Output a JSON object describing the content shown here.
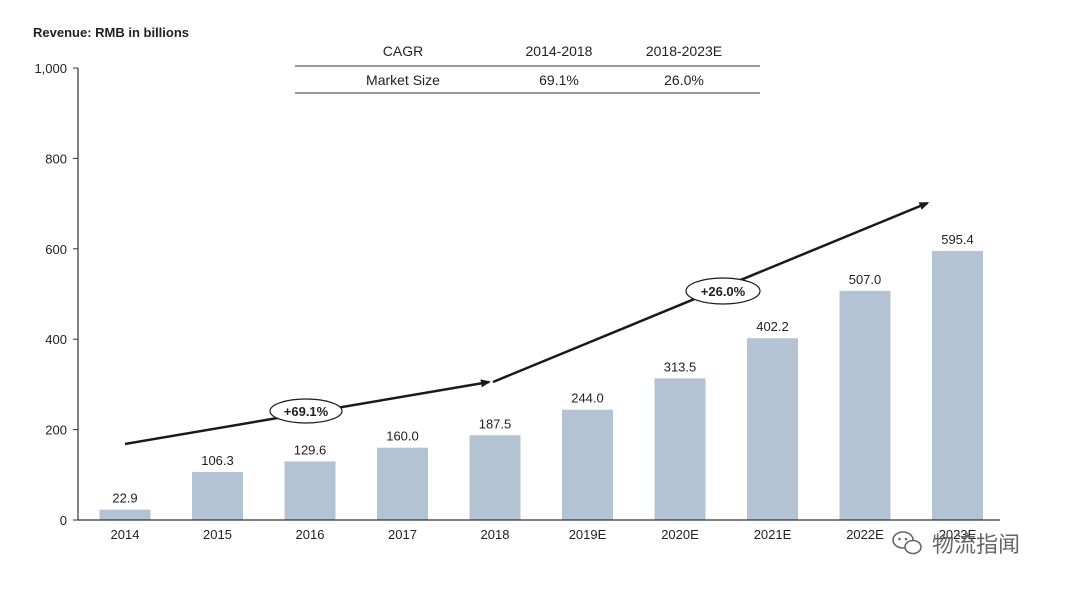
{
  "colors": {
    "bar": "#b4c3d4",
    "axis": "#333333",
    "arrow": "#1a1a1a",
    "text": "#222222",
    "watermark": "#666666"
  },
  "cagr_table": {
    "header": [
      "CAGR",
      "2014-2018",
      "2018-2023E"
    ],
    "row": [
      "Market Size",
      "69.1%",
      "26.0%"
    ]
  },
  "trend_labels": [
    "+69.1%",
    "+26.0%"
  ],
  "watermark": {
    "icon": "wechat-icon",
    "text": "物流指闻"
  },
  "chart_data": {
    "type": "bar",
    "ylabel": "Revenue: RMB in billions",
    "xlabel": "",
    "ylim": [
      0,
      1000
    ],
    "yticks": [
      0,
      200,
      400,
      600,
      800,
      1000
    ],
    "ytick_labels": [
      "0",
      "200",
      "400",
      "600",
      "800",
      "1,000"
    ],
    "categories": [
      "2014",
      "2015",
      "2016",
      "2017",
      "2018",
      "2019E",
      "2020E",
      "2021E",
      "2022E",
      "2023E"
    ],
    "values": [
      22.9,
      106.3,
      129.6,
      160.0,
      187.5,
      244.0,
      313.5,
      402.2,
      507.0,
      595.4
    ],
    "value_labels": [
      "22.9",
      "106.3",
      "129.6",
      "160.0",
      "187.5",
      "244.0",
      "313.5",
      "402.2",
      "507.0",
      "595.4"
    ],
    "grid": false,
    "annotations": [
      {
        "text": "+69.1%",
        "from_category": "2014",
        "to_category": "2018"
      },
      {
        "text": "+26.0%",
        "from_category": "2018",
        "to_category": "2023E"
      }
    ]
  }
}
